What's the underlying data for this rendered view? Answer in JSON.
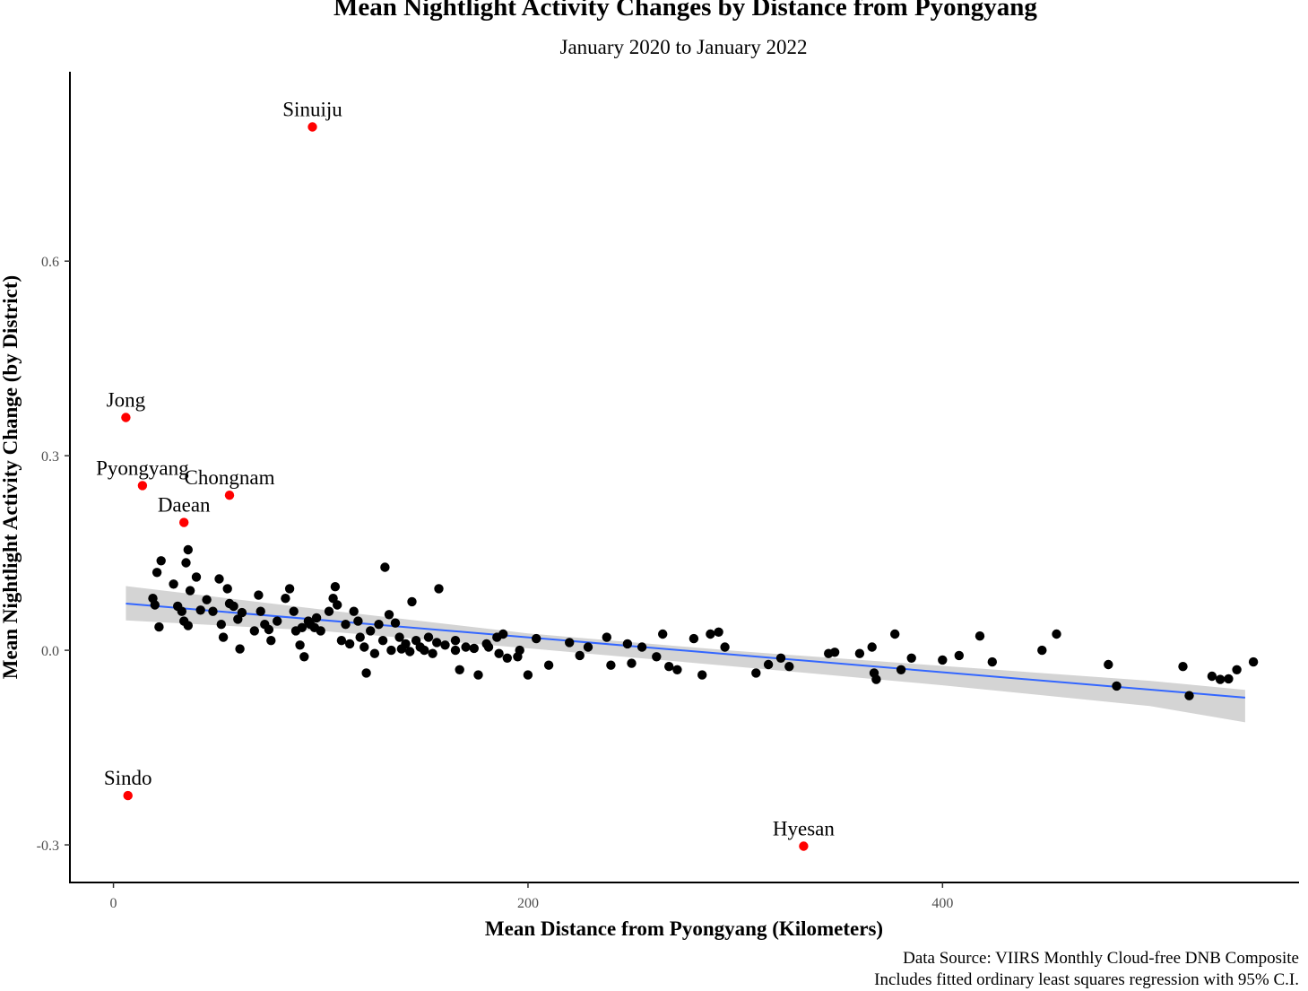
{
  "chart_data": {
    "type": "scatter",
    "title": "Mean Nightlight Activity Changes by Distance from Pyongyang",
    "subtitle": "January 2020 to January 2022",
    "xlabel": "Mean Distance from Pyongyang (Kilometers)",
    "ylabel": "Mean Nightlight Activity Change (by District)",
    "xlim": [
      -21,
      572
    ],
    "ylim": [
      -0.358,
      0.892
    ],
    "x_ticks": [
      0,
      200,
      400
    ],
    "x_tick_labels": [
      "0",
      "200",
      "400"
    ],
    "y_ticks": [
      -0.3,
      0.0,
      0.3,
      0.6
    ],
    "y_tick_labels": [
      "-0.3",
      "0.0",
      "0.3",
      "0.6"
    ],
    "grid": false,
    "caption": [
      "Data Source: VIIRS Monthly Cloud-free DNB Composite",
      "Includes fitted ordinary least squares regression with 95% C.I."
    ],
    "colors": {
      "points": "#000000",
      "highlight": "#ff0000",
      "fit_line": "#3366ff",
      "ci_band": "#cccccc"
    },
    "fit_line": {
      "x": [
        6,
        546
      ],
      "y": [
        0.072,
        -0.073
      ]
    },
    "confidence_band": {
      "x": [
        6,
        100,
        200,
        300,
        400,
        500,
        546
      ],
      "lower": [
        0.046,
        0.03,
        0.003,
        -0.025,
        -0.054,
        -0.086,
        -0.111
      ],
      "upper": [
        0.099,
        0.063,
        0.026,
        -0.001,
        -0.024,
        -0.047,
        -0.061
      ]
    },
    "labeled_points": [
      {
        "label": "Sinuiju",
        "x": 96,
        "y": 0.807
      },
      {
        "label": "Jong",
        "x": 6,
        "y": 0.359
      },
      {
        "label": "Pyongyang",
        "x": 14,
        "y": 0.254
      },
      {
        "label": "Chongnam",
        "x": 56,
        "y": 0.239
      },
      {
        "label": "Daean",
        "x": 34,
        "y": 0.197
      },
      {
        "label": "Sindo",
        "x": 7,
        "y": -0.224
      },
      {
        "label": "Hyesan",
        "x": 333,
        "y": -0.302
      }
    ],
    "points": [
      [
        21,
        0.12
      ],
      [
        23,
        0.138
      ],
      [
        36,
        0.155
      ],
      [
        35,
        0.135
      ],
      [
        40,
        0.113
      ],
      [
        29,
        0.102
      ],
      [
        37,
        0.092
      ],
      [
        19,
        0.08
      ],
      [
        20,
        0.07
      ],
      [
        22,
        0.036
      ],
      [
        31,
        0.068
      ],
      [
        33,
        0.06
      ],
      [
        34,
        0.045
      ],
      [
        36,
        0.038
      ],
      [
        42,
        0.062
      ],
      [
        45,
        0.078
      ],
      [
        48,
        0.06
      ],
      [
        51,
        0.11
      ],
      [
        52,
        0.04
      ],
      [
        53,
        0.02
      ],
      [
        55,
        0.095
      ],
      [
        56,
        0.072
      ],
      [
        58,
        0.068
      ],
      [
        60,
        0.048
      ],
      [
        61,
        0.002
      ],
      [
        62,
        0.058
      ],
      [
        68,
        0.03
      ],
      [
        70,
        0.085
      ],
      [
        71,
        0.06
      ],
      [
        73,
        0.04
      ],
      [
        75,
        0.032
      ],
      [
        76,
        0.015
      ],
      [
        79,
        0.045
      ],
      [
        83,
        0.08
      ],
      [
        85,
        0.095
      ],
      [
        87,
        0.06
      ],
      [
        88,
        0.03
      ],
      [
        90,
        0.008
      ],
      [
        91,
        0.035
      ],
      [
        92,
        -0.01
      ],
      [
        94,
        0.045
      ],
      [
        95,
        0.04
      ],
      [
        97,
        0.035
      ],
      [
        98,
        0.05
      ],
      [
        100,
        0.03
      ],
      [
        104,
        0.06
      ],
      [
        106,
        0.08
      ],
      [
        107,
        0.098
      ],
      [
        108,
        0.07
      ],
      [
        110,
        0.015
      ],
      [
        112,
        0.04
      ],
      [
        114,
        0.01
      ],
      [
        116,
        0.06
      ],
      [
        118,
        0.045
      ],
      [
        119,
        0.02
      ],
      [
        121,
        0.005
      ],
      [
        122,
        -0.035
      ],
      [
        124,
        0.03
      ],
      [
        126,
        -0.005
      ],
      [
        128,
        0.04
      ],
      [
        130,
        0.015
      ],
      [
        131,
        0.128
      ],
      [
        133,
        0.055
      ],
      [
        134,
        0.0
      ],
      [
        136,
        0.042
      ],
      [
        138,
        0.02
      ],
      [
        139,
        0.002
      ],
      [
        141,
        0.01
      ],
      [
        143,
        -0.002
      ],
      [
        144,
        0.075
      ],
      [
        146,
        0.015
      ],
      [
        148,
        0.005
      ],
      [
        150,
        0.0
      ],
      [
        152,
        0.02
      ],
      [
        154,
        -0.005
      ],
      [
        156,
        0.012
      ],
      [
        157,
        0.095
      ],
      [
        160,
        0.008
      ],
      [
        165,
        0.0
      ],
      [
        167,
        -0.03
      ],
      [
        170,
        0.005
      ],
      [
        174,
        0.003
      ],
      [
        176,
        -0.038
      ],
      [
        181,
        0.005
      ],
      [
        185,
        0.02
      ],
      [
        188,
        0.025
      ],
      [
        190,
        -0.012
      ],
      [
        196,
        0.0
      ],
      [
        200,
        -0.038
      ],
      [
        204,
        0.018
      ],
      [
        210,
        -0.023
      ],
      [
        220,
        0.012
      ],
      [
        225,
        -0.008
      ],
      [
        229,
        0.005
      ],
      [
        238,
        0.02
      ],
      [
        240,
        -0.023
      ],
      [
        248,
        0.01
      ],
      [
        250,
        -0.02
      ],
      [
        255,
        0.005
      ],
      [
        262,
        -0.01
      ],
      [
        265,
        0.025
      ],
      [
        268,
        -0.025
      ],
      [
        272,
        -0.03
      ],
      [
        280,
        0.018
      ],
      [
        284,
        -0.038
      ],
      [
        288,
        0.025
      ],
      [
        292,
        0.028
      ],
      [
        295,
        0.005
      ],
      [
        310,
        -0.035
      ],
      [
        316,
        -0.022
      ],
      [
        322,
        -0.012
      ],
      [
        326,
        -0.025
      ],
      [
        345,
        -0.005
      ],
      [
        348,
        -0.003
      ],
      [
        360,
        -0.005
      ],
      [
        366,
        0.005
      ],
      [
        367,
        -0.035
      ],
      [
        368,
        -0.045
      ],
      [
        377,
        0.025
      ],
      [
        380,
        -0.03
      ],
      [
        385,
        -0.012
      ],
      [
        400,
        -0.015
      ],
      [
        408,
        -0.008
      ],
      [
        418,
        0.022
      ],
      [
        424,
        -0.018
      ],
      [
        448,
        0.0
      ],
      [
        455,
        0.025
      ],
      [
        480,
        -0.022
      ],
      [
        484,
        -0.055
      ],
      [
        516,
        -0.025
      ],
      [
        519,
        -0.07
      ],
      [
        530,
        -0.04
      ],
      [
        534,
        -0.045
      ],
      [
        538,
        -0.044
      ],
      [
        542,
        -0.03
      ],
      [
        550,
        -0.018
      ],
      [
        195,
        -0.01
      ],
      [
        186,
        -0.005
      ],
      [
        165,
        0.015
      ],
      [
        180,
        0.01
      ]
    ]
  }
}
